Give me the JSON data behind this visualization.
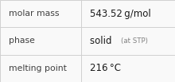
{
  "rows": [
    {
      "label": "molar mass",
      "value": "543.52 g/mol",
      "value_main": null,
      "value_sub": null
    },
    {
      "label": "phase",
      "value": null,
      "value_main": "solid",
      "value_sub": "(at STP)"
    },
    {
      "label": "melting point",
      "value": "216 °C",
      "value_main": null,
      "value_sub": null
    }
  ],
  "col_split": 0.465,
  "background_color": "#f9f9f9",
  "cell_bg": "#ffffff",
  "border_color": "#d0d0d0",
  "label_color": "#404040",
  "value_color": "#1a1a1a",
  "sub_color": "#808080",
  "label_fontsize": 7.8,
  "value_fontsize": 8.5,
  "sub_fontsize": 6.2,
  "font_family": "DejaVu Sans"
}
